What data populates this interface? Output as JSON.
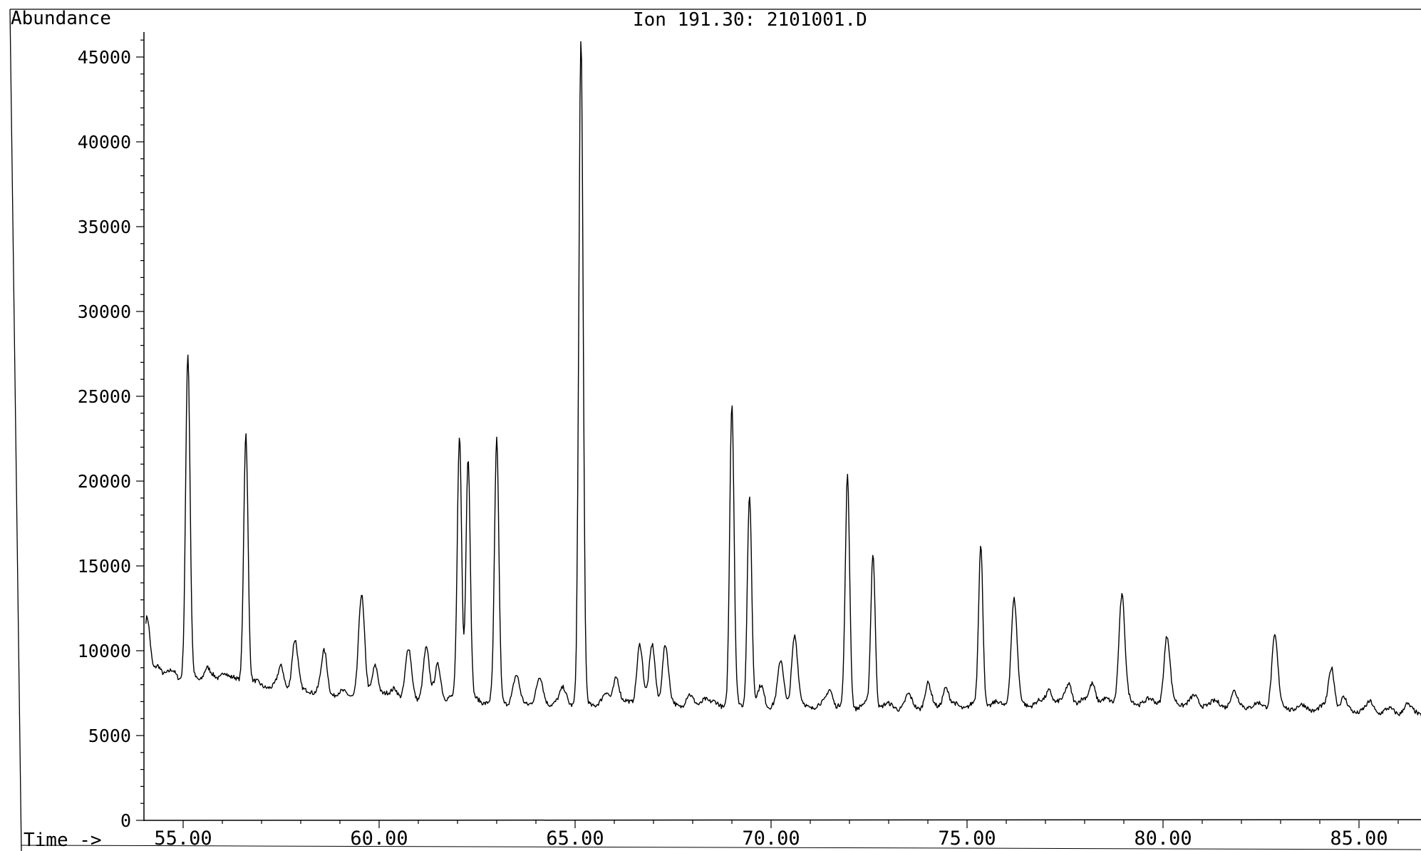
{
  "header": {
    "y_label": "Abundance",
    "title": "Ion 191.30: 2101001.D",
    "x_label": "Time ->"
  },
  "chart_data": {
    "type": "line",
    "title": "Ion 191.30: 2101001.D",
    "xlabel": "Time ->",
    "ylabel": "Abundance",
    "xlim": [
      54.05,
      87.2
    ],
    "ylim": [
      0,
      46000
    ],
    "grid": false,
    "line_color": "#000000",
    "x_ticks": [
      55.0,
      60.0,
      65.0,
      70.0,
      75.0,
      80.0,
      85.0
    ],
    "x_tick_labels": [
      "55.00",
      "60.00",
      "65.00",
      "70.00",
      "75.00",
      "80.00",
      "85.00"
    ],
    "y_ticks": [
      0,
      5000,
      10000,
      15000,
      20000,
      25000,
      30000,
      35000,
      40000,
      45000
    ],
    "y_tick_labels": [
      "0",
      "5000",
      "10000",
      "15000",
      "20000",
      "25000",
      "30000",
      "35000",
      "40000",
      "45000"
    ],
    "baseline": [
      [
        54.05,
        8600
      ],
      [
        56.2,
        8300
      ],
      [
        58.0,
        7600
      ],
      [
        62.0,
        7100
      ],
      [
        66.0,
        6900
      ],
      [
        70.0,
        6800
      ],
      [
        74.0,
        6700
      ],
      [
        78.0,
        7000
      ],
      [
        80.0,
        7000
      ],
      [
        82.0,
        6800
      ],
      [
        84.0,
        6600
      ],
      [
        87.2,
        6300
      ]
    ],
    "peaks": [
      {
        "t": 54.08,
        "y": 11800
      },
      {
        "t": 54.35,
        "y": 9300
      },
      {
        "t": 54.75,
        "y": 8800
      },
      {
        "t": 55.12,
        "y": 27400
      },
      {
        "t": 55.6,
        "y": 9000
      },
      {
        "t": 56.05,
        "y": 8900
      },
      {
        "t": 56.6,
        "y": 23000
      },
      {
        "t": 57.1,
        "y": 8000
      },
      {
        "t": 57.5,
        "y": 9000
      },
      {
        "t": 57.85,
        "y": 10600
      },
      {
        "t": 58.2,
        "y": 7800
      },
      {
        "t": 58.6,
        "y": 9900
      },
      {
        "t": 59.2,
        "y": 7400
      },
      {
        "t": 59.55,
        "y": 13200
      },
      {
        "t": 59.9,
        "y": 9300
      },
      {
        "t": 60.4,
        "y": 7900
      },
      {
        "t": 60.75,
        "y": 10000
      },
      {
        "t": 61.2,
        "y": 10100
      },
      {
        "t": 61.5,
        "y": 9300
      },
      {
        "t": 62.05,
        "y": 22800
      },
      {
        "t": 62.27,
        "y": 21400
      },
      {
        "t": 63.0,
        "y": 22300
      },
      {
        "t": 63.5,
        "y": 8400
      },
      {
        "t": 64.1,
        "y": 8300
      },
      {
        "t": 64.7,
        "y": 7700
      },
      {
        "t": 65.15,
        "y": 46000
      },
      {
        "t": 65.8,
        "y": 7400
      },
      {
        "t": 66.05,
        "y": 8600
      },
      {
        "t": 66.65,
        "y": 10500
      },
      {
        "t": 66.97,
        "y": 10300
      },
      {
        "t": 67.3,
        "y": 10300
      },
      {
        "t": 67.9,
        "y": 7300
      },
      {
        "t": 68.3,
        "y": 7300
      },
      {
        "t": 69.0,
        "y": 24500
      },
      {
        "t": 69.45,
        "y": 19300
      },
      {
        "t": 69.75,
        "y": 7900
      },
      {
        "t": 70.25,
        "y": 9300
      },
      {
        "t": 70.6,
        "y": 10900
      },
      {
        "t": 71.5,
        "y": 7800
      },
      {
        "t": 71.95,
        "y": 20200
      },
      {
        "t": 72.6,
        "y": 15800
      },
      {
        "t": 73.5,
        "y": 7300
      },
      {
        "t": 74.0,
        "y": 8000
      },
      {
        "t": 74.45,
        "y": 7900
      },
      {
        "t": 75.35,
        "y": 16200
      },
      {
        "t": 76.2,
        "y": 13000
      },
      {
        "t": 77.1,
        "y": 7800
      },
      {
        "t": 77.6,
        "y": 8100
      },
      {
        "t": 78.2,
        "y": 8200
      },
      {
        "t": 78.95,
        "y": 13300
      },
      {
        "t": 80.1,
        "y": 10800
      },
      {
        "t": 80.8,
        "y": 7200
      },
      {
        "t": 81.8,
        "y": 7500
      },
      {
        "t": 82.85,
        "y": 10900
      },
      {
        "t": 84.3,
        "y": 9100
      },
      {
        "t": 84.6,
        "y": 7100
      },
      {
        "t": 85.3,
        "y": 6900
      },
      {
        "t": 86.2,
        "y": 6800
      }
    ]
  }
}
